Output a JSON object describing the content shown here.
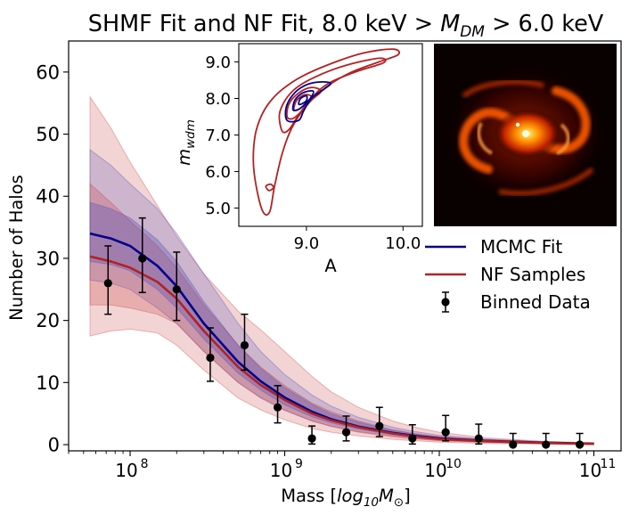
{
  "chart_data": {
    "type": "line",
    "title": {
      "prefix": "SHMF Fit and NF Fit, 8.0 keV > ",
      "symbol": "M",
      "subscript": "DM",
      "suffix": " > 6.0 keV"
    },
    "main": {
      "xlabel": {
        "prefix": "Mass [",
        "math": "log",
        "sub1": "10",
        "math2": "M",
        "sub2": "⊙",
        "suffix": "]"
      },
      "ylabel": "Number of Halos",
      "xscale": "log",
      "xlim": [
        40000000,
        150000000000
      ],
      "ylim": [
        -1,
        65
      ],
      "yticks": [
        0,
        10,
        20,
        30,
        40,
        50,
        60
      ],
      "xtick_powers": [
        8,
        9,
        10,
        11
      ],
      "curve_mass": [
        55000000,
        75000000,
        100000000,
        150000000,
        200000000,
        300000000,
        500000000,
        700000000,
        1000000000,
        1500000000,
        2000000000,
        3000000000,
        5000000000,
        7000000000,
        10000000000,
        20000000000,
        50000000000,
        100000000000
      ],
      "mcmc_fit": [
        34,
        33.2,
        32,
        28.8,
        25.5,
        19.5,
        13.3,
        10.2,
        7.6,
        5.3,
        4.1,
        2.9,
        1.9,
        1.4,
        1.0,
        0.6,
        0.3,
        0.15
      ],
      "mcmc_band_inner": {
        "lower": [
          29.5,
          29,
          28,
          25,
          22,
          17,
          11.5,
          8.8,
          6.4,
          4.5,
          3.5,
          2.5,
          1.6,
          1.2,
          0.85,
          0.5,
          0.25,
          0.1
        ],
        "upper": [
          39,
          38,
          36.5,
          33,
          29.5,
          23,
          16,
          12.3,
          9.2,
          6.5,
          5.0,
          3.6,
          2.3,
          1.7,
          1.2,
          0.75,
          0.35,
          0.2
        ]
      },
      "mcmc_band_outer": {
        "lower": [
          26.5,
          26,
          25,
          22,
          19.5,
          15,
          10,
          7.5,
          5.5,
          3.8,
          3.0,
          2.1,
          1.4,
          1.0,
          0.7,
          0.4,
          0.2,
          0.08
        ],
        "upper": [
          47.5,
          45,
          42,
          38,
          34,
          27.5,
          19.5,
          15,
          11.3,
          8.0,
          6.2,
          4.4,
          2.8,
          2.1,
          1.5,
          0.9,
          0.45,
          0.25
        ]
      },
      "nf_samples": [
        30.3,
        29.5,
        28.5,
        26.2,
        23.5,
        18.3,
        12.5,
        9.6,
        7.2,
        5.0,
        3.9,
        2.8,
        1.8,
        1.3,
        0.9,
        0.55,
        0.25,
        0.12
      ],
      "nf_band_inner": {
        "lower": [
          22.5,
          22.5,
          22,
          21,
          19.5,
          15,
          10,
          7.6,
          5.6,
          3.8,
          2.9,
          2.0,
          1.25,
          0.9,
          0.6,
          0.35,
          0.15,
          0.08
        ],
        "upper": [
          42,
          39,
          36,
          32,
          28.5,
          22.5,
          16,
          12.5,
          9.5,
          6.7,
          5.3,
          3.8,
          2.4,
          1.8,
          1.3,
          0.8,
          0.4,
          0.2
        ]
      },
      "nf_band_outer": {
        "lower": [
          17.5,
          18.3,
          18.6,
          18,
          16,
          12,
          7.5,
          5.6,
          4.0,
          2.6,
          2.0,
          1.4,
          0.85,
          0.6,
          0.4,
          0.2,
          0.1,
          0.05
        ],
        "upper": [
          56,
          51,
          45.5,
          38.5,
          33.5,
          27.5,
          21.5,
          18.5,
          15,
          11,
          8.5,
          6.0,
          3.8,
          2.8,
          2.0,
          1.1,
          0.5,
          0.3
        ]
      },
      "binned_data": {
        "mass": [
          72000000,
          120000000,
          200000000,
          330000000,
          550000000,
          900000000,
          1500000000,
          2500000000,
          4100000000,
          6700000000,
          11000000000,
          18000000000,
          30000000000,
          49000000000,
          81000000000
        ],
        "counts": [
          26,
          30,
          25,
          14,
          16,
          6,
          1,
          2,
          3,
          1,
          2,
          1,
          0,
          0,
          0
        ],
        "err_low": [
          5,
          5.5,
          5,
          3.8,
          4,
          2.5,
          0.9,
          1.4,
          1.7,
          0.9,
          1.4,
          0.9,
          0,
          0,
          0
        ],
        "err_high": [
          6,
          6.5,
          6,
          4.8,
          5,
          3.5,
          2,
          2.6,
          3,
          2.2,
          2.7,
          2.3,
          1.8,
          1.8,
          1.8
        ]
      },
      "legend": {
        "placement": "right",
        "entries": [
          {
            "label": "MCMC Fit",
            "color": "#00008b",
            "marker": "line"
          },
          {
            "label": "NF Samples",
            "color": "#b22222",
            "marker": "line"
          },
          {
            "label": "Binned Data",
            "color": "#000000",
            "marker": "errorbar"
          }
        ]
      },
      "colors": {
        "mcmc": "#00008b",
        "mcmc_band": "#4a4ab8",
        "nf": "#b22222",
        "nf_band": "#c83c3c",
        "data": "#000000"
      }
    },
    "inset_contour": {
      "type": "contour",
      "xlabel": "A",
      "ylabel": {
        "math": "m",
        "sub": "wdm"
      },
      "xlim": [
        8.3,
        10.2
      ],
      "ylim": [
        4.5,
        9.5
      ],
      "xticks": [
        "9.0",
        "10.0"
      ],
      "xtick_values": [
        9.0,
        10.0
      ],
      "yticks": [
        "5.0",
        "6.0",
        "7.0",
        "8.0",
        "9.0"
      ],
      "ytick_values": [
        5.0,
        6.0,
        7.0,
        8.0,
        9.0
      ],
      "nf_contours": [
        [
          [
            8.55,
            4.9
          ],
          [
            8.48,
            5.6
          ],
          [
            8.45,
            6.3
          ],
          [
            8.47,
            7.0
          ],
          [
            8.53,
            7.5
          ],
          [
            8.62,
            7.9
          ],
          [
            8.75,
            8.25
          ],
          [
            8.95,
            8.6
          ],
          [
            9.25,
            8.95
          ],
          [
            9.6,
            9.25
          ],
          [
            9.9,
            9.35
          ],
          [
            9.95,
            9.2
          ],
          [
            9.75,
            9.0
          ],
          [
            9.45,
            8.7
          ],
          [
            9.2,
            8.3
          ],
          [
            9.0,
            7.8
          ],
          [
            8.85,
            7.2
          ],
          [
            8.75,
            6.5
          ],
          [
            8.67,
            5.6
          ],
          [
            8.62,
            4.9
          ]
        ],
        [
          [
            8.75,
            7.1
          ],
          [
            8.72,
            7.55
          ],
          [
            8.78,
            7.95
          ],
          [
            8.9,
            8.3
          ],
          [
            9.1,
            8.6
          ],
          [
            9.4,
            8.9
          ],
          [
            9.75,
            9.1
          ],
          [
            9.8,
            8.98
          ],
          [
            9.5,
            8.72
          ],
          [
            9.22,
            8.4
          ],
          [
            9.05,
            8.0
          ],
          [
            8.92,
            7.55
          ],
          [
            8.82,
            7.15
          ]
        ],
        [
          [
            8.8,
            7.5
          ],
          [
            8.82,
            7.85
          ],
          [
            8.92,
            8.15
          ],
          [
            9.05,
            8.3
          ],
          [
            9.15,
            8.2
          ],
          [
            9.05,
            7.95
          ],
          [
            8.95,
            7.65
          ],
          [
            8.86,
            7.45
          ]
        ],
        [
          [
            8.87,
            7.7
          ],
          [
            8.9,
            7.95
          ],
          [
            8.98,
            8.1
          ],
          [
            9.05,
            8.05
          ],
          [
            8.99,
            7.86
          ],
          [
            8.92,
            7.7
          ]
        ],
        [
          [
            8.6,
            5.5
          ],
          [
            8.58,
            5.6
          ],
          [
            8.63,
            5.65
          ],
          [
            8.66,
            5.56
          ],
          [
            8.62,
            5.48
          ]
        ]
      ],
      "mcmc_contours": [
        [
          [
            8.8,
            7.4
          ],
          [
            8.79,
            7.75
          ],
          [
            8.86,
            8.1
          ],
          [
            8.98,
            8.35
          ],
          [
            9.12,
            8.45
          ],
          [
            9.25,
            8.42
          ],
          [
            9.18,
            8.25
          ],
          [
            9.05,
            8.0
          ],
          [
            8.97,
            7.65
          ],
          [
            8.92,
            7.4
          ]
        ],
        [
          [
            8.86,
            7.7
          ],
          [
            8.88,
            7.95
          ],
          [
            8.96,
            8.15
          ],
          [
            9.07,
            8.2
          ],
          [
            9.04,
            8.0
          ],
          [
            8.96,
            7.78
          ],
          [
            8.9,
            7.68
          ]
        ],
        [
          [
            8.92,
            7.85
          ],
          [
            8.94,
            8.0
          ],
          [
            9.0,
            8.07
          ],
          [
            9.0,
            7.94
          ],
          [
            8.95,
            7.85
          ]
        ]
      ],
      "colors": {
        "nf": "#b22222",
        "mcmc": "#00008b"
      }
    },
    "inset_image": {
      "type": "image",
      "description_color": "#ff6a00"
    }
  }
}
